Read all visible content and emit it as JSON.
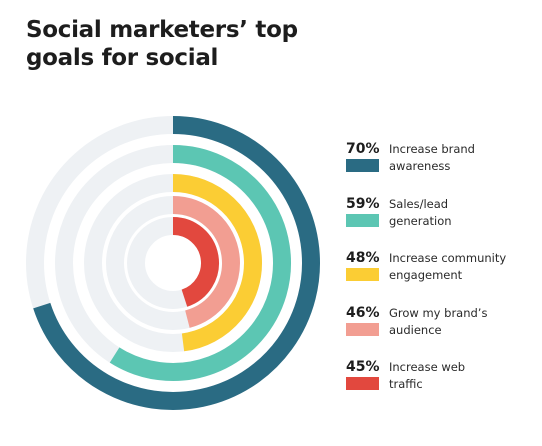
{
  "title": {
    "line1": "Social marketers’ top",
    "line2": "goals for social"
  },
  "colors": {
    "track": "#eef1f4",
    "background": "#ffffff"
  },
  "chart_data": {
    "type": "radial-bar",
    "title": "Social marketers’ top goals for social",
    "unit": "%",
    "max": 100,
    "series": [
      {
        "pct_label": "70%",
        "value": 70,
        "label_line1": "Increase brand",
        "label_line2": "awareness",
        "color": "#2a6b83"
      },
      {
        "pct_label": "59%",
        "value": 59,
        "label_line1": "Sales/lead",
        "label_line2": "generation",
        "color": "#5cc6b3"
      },
      {
        "pct_label": "48%",
        "value": 48,
        "label_line1": "Increase community",
        "label_line2": "engagement",
        "color": "#fbcd34"
      },
      {
        "pct_label": "46%",
        "value": 46,
        "label_line1": "Grow my brand’s",
        "label_line2": "audience",
        "color": "#f29e92"
      },
      {
        "pct_label": "45%",
        "value": 45,
        "label_line1": "Increase web",
        "label_line2": "traffic",
        "color": "#e2483e"
      }
    ]
  }
}
